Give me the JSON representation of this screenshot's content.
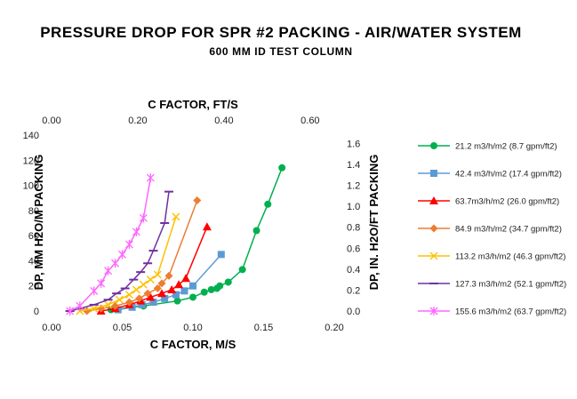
{
  "chart_data": {
    "type": "line",
    "title": "PRESSURE DROP FOR SPR #2 PACKING - AIR/WATER SYSTEM",
    "subtitle": "600 MM ID TEST COLUMN",
    "xlabel": "C FACTOR, M/S",
    "x2label": "C FACTOR, FT/S",
    "ylabel": "DP, MM H2O/M PACKING",
    "y2label": "DP, IN. H2O/FT PACKING",
    "xlim": [
      0,
      0.2
    ],
    "ylim": [
      0,
      140
    ],
    "x2lim": [
      0,
      0.656
    ],
    "y2lim": [
      0,
      1.68
    ],
    "x_ticks": [
      "0.00",
      "0.05",
      "0.10",
      "0.15",
      "0.20"
    ],
    "y_ticks": [
      "0",
      "20",
      "40",
      "60",
      "80",
      "100",
      "120",
      "140"
    ],
    "x2_ticks": [
      "0.00",
      "0.20",
      "0.40",
      "0.60"
    ],
    "y2_ticks": [
      "0.0",
      "0.2",
      "0.4",
      "0.6",
      "0.8",
      "1.0",
      "1.2",
      "1.4",
      "1.6"
    ],
    "series": [
      {
        "name": "21.2 m3/h/m2 (8.7 gpm/ft2)",
        "color": "#00b050",
        "marker": "circle",
        "x": [
          0.042,
          0.065,
          0.089,
          0.1,
          0.108,
          0.113,
          0.117,
          0.119,
          0.125,
          0.135,
          0.145,
          0.153,
          0.163
        ],
        "y": [
          1,
          4,
          8,
          11,
          15,
          17,
          18,
          20,
          23,
          33,
          64,
          85,
          114
        ]
      },
      {
        "name": "42.4 m3/h/m2 (17.4 gpm/ft2)",
        "color": "#5b9bd5",
        "marker": "square",
        "x": [
          0.047,
          0.057,
          0.064,
          0.072,
          0.08,
          0.088,
          0.094,
          0.1,
          0.12
        ],
        "y": [
          1,
          3,
          5,
          7,
          10,
          13,
          16,
          20,
          45
        ]
      },
      {
        "name": "63.7m3/h/m2 (26.0 gpm/ft2)",
        "color": "#ff0000",
        "marker": "triangle",
        "x": [
          0.035,
          0.045,
          0.055,
          0.063,
          0.07,
          0.078,
          0.085,
          0.09,
          0.095,
          0.11
        ],
        "y": [
          0,
          2,
          5,
          8,
          11,
          14,
          17,
          21,
          26,
          67
        ]
      },
      {
        "name": "84.9 m3/h/m2 (34.7 gpm/ft2)",
        "color": "#ed7d31",
        "marker": "diamond",
        "x": [
          0.025,
          0.035,
          0.045,
          0.055,
          0.062,
          0.068,
          0.075,
          0.078,
          0.083,
          0.103
        ],
        "y": [
          0,
          2,
          4,
          7,
          10,
          14,
          18,
          22,
          28,
          88
        ]
      },
      {
        "name": "113.2 m3/h/m2 (46.3 gpm/ft2)",
        "color": "#ffc000",
        "marker": "x",
        "x": [
          0.02,
          0.03,
          0.04,
          0.048,
          0.055,
          0.06,
          0.065,
          0.07,
          0.075,
          0.088
        ],
        "y": [
          0,
          2,
          5,
          9,
          13,
          17,
          21,
          25,
          29,
          75
        ]
      },
      {
        "name": "127.3 m3/h/m2 (52.1 gpm/ft2)",
        "color": "#7030a0",
        "marker": "dash",
        "x": [
          0.013,
          0.02,
          0.03,
          0.04,
          0.046,
          0.052,
          0.058,
          0.063,
          0.068,
          0.072,
          0.08,
          0.083
        ],
        "y": [
          0,
          2,
          5,
          9,
          14,
          18,
          25,
          31,
          38,
          48,
          70,
          95
        ]
      },
      {
        "name": "155.6 m3/h/m2 (63.7 gpm/ft2)",
        "color": "#ff66ff",
        "marker": "asterisk",
        "x": [
          0.013,
          0.02,
          0.03,
          0.035,
          0.04,
          0.045,
          0.05,
          0.055,
          0.06,
          0.065,
          0.07
        ],
        "y": [
          0,
          4,
          16,
          22,
          32,
          38,
          45,
          53,
          63,
          74,
          106
        ]
      }
    ]
  }
}
